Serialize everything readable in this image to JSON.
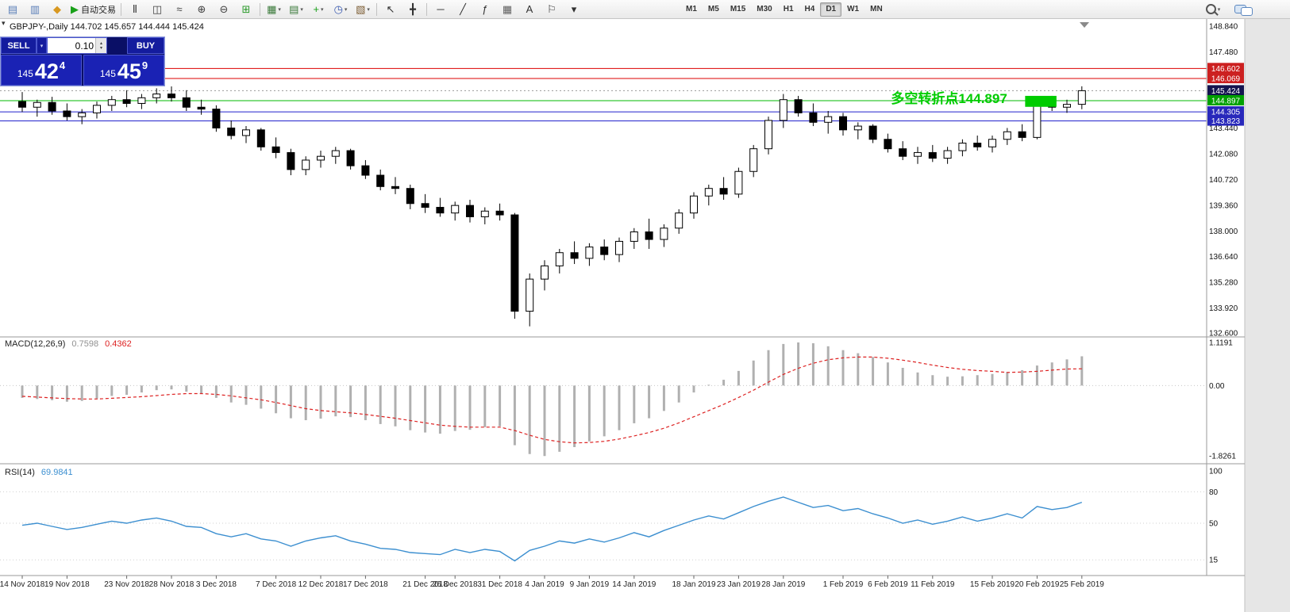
{
  "toolbar": {
    "autotrading_label": "自动交易",
    "timeframes": [
      "M1",
      "M5",
      "M15",
      "M30",
      "H1",
      "H4",
      "D1",
      "W1",
      "MN"
    ],
    "active_timeframe": "D1",
    "icons": [
      {
        "name": "new-order-icon",
        "glyph": "▤",
        "color": "#5b7fb8"
      },
      {
        "name": "charts-grid-icon",
        "glyph": "▥",
        "color": "#5b7fb8"
      },
      {
        "name": "metaquotes-icon",
        "glyph": "◆",
        "color": "#d89820"
      },
      {
        "name": "autotrading-button",
        "glyph": "▶",
        "color": "#18a018",
        "label": "自动交易"
      },
      {
        "sep": true
      },
      {
        "name": "bar-chart-icon",
        "glyph": "Ⅱ",
        "color": "#404040"
      },
      {
        "name": "candlestick-chart-icon",
        "glyph": "◫",
        "color": "#404040"
      },
      {
        "name": "line-chart-icon",
        "glyph": "≈",
        "color": "#404040"
      },
      {
        "name": "zoom-in-icon",
        "glyph": "⊕",
        "color": "#404040"
      },
      {
        "name": "zoom-out-icon",
        "glyph": "⊖",
        "color": "#404040"
      },
      {
        "name": "tile-windows-icon",
        "glyph": "⊞",
        "color": "#2a9a2a"
      },
      {
        "sep": true
      },
      {
        "name": "new-chart-icon",
        "glyph": "▦",
        "color": "#3a7a3a",
        "caret": true
      },
      {
        "name": "profiles-icon",
        "glyph": "▤",
        "color": "#3a7a3a",
        "caret": true
      },
      {
        "name": "indicators-icon",
        "glyph": "+",
        "color": "#18a018",
        "caret": true
      },
      {
        "name": "periods-icon",
        "glyph": "◷",
        "color": "#3a5ab0",
        "caret": true
      },
      {
        "name": "templates-icon",
        "glyph": "▧",
        "color": "#7a5a30",
        "caret": true
      },
      {
        "sep": true
      },
      {
        "name": "cursor-icon",
        "glyph": "↖",
        "color": "#303030"
      },
      {
        "name": "crosshair-icon",
        "glyph": "╋",
        "color": "#303030"
      },
      {
        "sep": true
      },
      {
        "name": "horizontal-line-icon",
        "glyph": "─",
        "color": "#303030"
      },
      {
        "name": "trendline-icon",
        "glyph": "╱",
        "color": "#303030"
      },
      {
        "name": "fibonacci-icon",
        "glyph": "ƒ",
        "color": "#303030"
      },
      {
        "name": "grid-icon",
        "glyph": "▦",
        "color": "#606060"
      },
      {
        "name": "text-icon",
        "glyph": "A",
        "color": "#303030"
      },
      {
        "name": "label-icon",
        "glyph": "⚐",
        "color": "#303030"
      },
      {
        "name": "shapes-icon",
        "glyph": "▾",
        "color": "#303030"
      }
    ]
  },
  "trade_panel": {
    "sell_label": "SELL",
    "buy_label": "BUY",
    "lot_value": "0.10",
    "bid": {
      "prefix": "145",
      "big": "42",
      "sup": "4"
    },
    "ask": {
      "prefix": "145",
      "big": "45",
      "sup": "9"
    }
  },
  "chart": {
    "symbol_line": "GBPJPY-,Daily  144.702 145.657 144.444 145.424"
  },
  "chart_data": {
    "type": "candlestick+indicators",
    "symbol": "GBPJPY-",
    "period": "Daily",
    "ohlc_display": {
      "open": "144.702",
      "high": "145.657",
      "low": "144.444",
      "close": "145.424"
    },
    "price_range": {
      "max": 148.84,
      "min": 132.6
    },
    "price_axis_ticks": [
      "148.840",
      "147.480",
      "143.440",
      "142.080",
      "140.720",
      "139.360",
      "138.000",
      "136.640",
      "135.280",
      "133.920",
      "132.600"
    ],
    "current_price": 145.424,
    "levels": [
      {
        "price": 146.602,
        "color": "#dd0000"
      },
      {
        "price": 146.069,
        "color": "#dd0000"
      },
      {
        "price": 144.897,
        "color": "#00bb00"
      },
      {
        "price": 144.305,
        "color": "#2222cc"
      },
      {
        "price": 143.823,
        "color": "#2222cc"
      }
    ],
    "badges": [
      {
        "text": "146.602",
        "price": 146.602,
        "color": "#cc2020"
      },
      {
        "text": "146.069",
        "price": 146.069,
        "color": "#cc2020"
      },
      {
        "text": "145.424",
        "price": 145.424,
        "color": "#141450"
      },
      {
        "text": "144.897",
        "price": 144.897,
        "color": "#00a000"
      },
      {
        "text": "144.305",
        "price": 144.305,
        "color": "#2828bb"
      },
      {
        "text": "143.823",
        "price": 143.823,
        "color": "#2828bb"
      }
    ],
    "annotation": {
      "text": "多空转折点144.897",
      "color": "#00cc00",
      "anchor_index": 66,
      "price": 144.77,
      "box": {
        "x1_index": 67.2,
        "x2_index": 69.3,
        "price_top": 145.15,
        "price_bottom": 144.57,
        "color": "#00cc00"
      }
    },
    "candles": [
      [
        144.85,
        145.35,
        144.3,
        144.55
      ],
      [
        144.55,
        144.95,
        144.05,
        144.8
      ],
      [
        144.8,
        145.1,
        144.15,
        144.35
      ],
      [
        144.35,
        144.75,
        143.85,
        144.05
      ],
      [
        144.05,
        144.45,
        143.65,
        144.25
      ],
      [
        144.25,
        144.85,
        143.95,
        144.65
      ],
      [
        144.65,
        145.15,
        144.35,
        144.95
      ],
      [
        144.95,
        145.45,
        144.55,
        144.75
      ],
      [
        144.75,
        145.25,
        144.45,
        145.05
      ],
      [
        145.05,
        145.55,
        144.75,
        145.25
      ],
      [
        145.25,
        145.65,
        144.85,
        145.05
      ],
      [
        145.05,
        145.45,
        144.35,
        144.55
      ],
      [
        144.55,
        144.95,
        144.15,
        144.45
      ],
      [
        144.45,
        144.65,
        143.25,
        143.45
      ],
      [
        143.45,
        143.85,
        142.85,
        143.05
      ],
      [
        143.05,
        143.55,
        142.65,
        143.35
      ],
      [
        143.35,
        143.45,
        142.25,
        142.45
      ],
      [
        142.45,
        142.95,
        141.85,
        142.15
      ],
      [
        142.15,
        142.35,
        140.95,
        141.25
      ],
      [
        141.25,
        141.95,
        140.95,
        141.75
      ],
      [
        141.75,
        142.25,
        141.35,
        141.95
      ],
      [
        141.95,
        142.45,
        141.55,
        142.25
      ],
      [
        142.25,
        142.35,
        141.25,
        141.45
      ],
      [
        141.45,
        141.75,
        140.75,
        140.95
      ],
      [
        140.95,
        141.25,
        140.15,
        140.35
      ],
      [
        140.35,
        140.85,
        139.95,
        140.25
      ],
      [
        140.25,
        140.45,
        139.15,
        139.45
      ],
      [
        139.45,
        139.95,
        138.95,
        139.25
      ],
      [
        139.25,
        139.75,
        138.75,
        138.95
      ],
      [
        138.95,
        139.55,
        138.55,
        139.35
      ],
      [
        139.35,
        139.65,
        138.45,
        138.75
      ],
      [
        138.75,
        139.25,
        138.35,
        139.05
      ],
      [
        139.05,
        139.45,
        138.55,
        138.85
      ],
      [
        138.85,
        138.95,
        133.35,
        133.75
      ],
      [
        133.75,
        135.75,
        132.95,
        135.45
      ],
      [
        135.45,
        136.45,
        134.85,
        136.15
      ],
      [
        136.15,
        137.05,
        135.75,
        136.85
      ],
      [
        136.85,
        137.45,
        136.25,
        136.55
      ],
      [
        136.55,
        137.35,
        136.15,
        137.15
      ],
      [
        137.15,
        137.55,
        136.45,
        136.75
      ],
      [
        136.75,
        137.65,
        136.35,
        137.45
      ],
      [
        137.45,
        138.15,
        137.05,
        137.95
      ],
      [
        137.95,
        138.65,
        137.05,
        137.55
      ],
      [
        137.55,
        138.35,
        137.15,
        138.15
      ],
      [
        138.15,
        139.15,
        137.85,
        138.95
      ],
      [
        138.95,
        140.05,
        138.65,
        139.85
      ],
      [
        139.85,
        140.45,
        139.35,
        140.25
      ],
      [
        140.25,
        140.85,
        139.65,
        139.95
      ],
      [
        139.95,
        141.35,
        139.75,
        141.15
      ],
      [
        141.15,
        142.55,
        140.85,
        142.35
      ],
      [
        142.35,
        144.05,
        142.05,
        143.85
      ],
      [
        143.85,
        145.25,
        143.45,
        144.95
      ],
      [
        144.95,
        145.15,
        144.05,
        144.25
      ],
      [
        144.25,
        144.75,
        143.55,
        143.75
      ],
      [
        143.75,
        144.35,
        143.15,
        144.05
      ],
      [
        144.05,
        144.25,
        143.05,
        143.35
      ],
      [
        143.35,
        143.75,
        142.85,
        143.55
      ],
      [
        143.55,
        143.65,
        142.65,
        142.85
      ],
      [
        142.85,
        143.15,
        142.15,
        142.35
      ],
      [
        142.35,
        142.75,
        141.75,
        141.95
      ],
      [
        141.95,
        142.45,
        141.55,
        142.15
      ],
      [
        142.15,
        142.55,
        141.65,
        141.85
      ],
      [
        141.85,
        142.45,
        141.55,
        142.25
      ],
      [
        142.25,
        142.85,
        141.95,
        142.65
      ],
      [
        142.65,
        143.05,
        142.25,
        142.45
      ],
      [
        142.45,
        143.05,
        142.15,
        142.85
      ],
      [
        142.85,
        143.45,
        142.55,
        143.25
      ],
      [
        143.25,
        143.65,
        142.75,
        142.95
      ],
      [
        142.95,
        145.05,
        142.85,
        144.85
      ],
      [
        144.85,
        145.15,
        144.35,
        144.55
      ],
      [
        144.55,
        144.95,
        144.25,
        144.7
      ],
      [
        144.702,
        145.657,
        144.444,
        145.424
      ]
    ],
    "date_labels": [
      {
        "i": 0,
        "label": "14 Nov 2018"
      },
      {
        "i": 3,
        "label": "19 Nov 2018"
      },
      {
        "i": 7,
        "label": "23 Nov 2018"
      },
      {
        "i": 10,
        "label": "28 Nov 2018"
      },
      {
        "i": 13,
        "label": "3 Dec 2018"
      },
      {
        "i": 17,
        "label": "7 Dec 2018"
      },
      {
        "i": 20,
        "label": "12 Dec 2018"
      },
      {
        "i": 23,
        "label": "17 Dec 2018"
      },
      {
        "i": 27,
        "label": "21 Dec 2018"
      },
      {
        "i": 29,
        "label": "26 Dec 2018"
      },
      {
        "i": 32,
        "label": "31 Dec 2018"
      },
      {
        "i": 35,
        "label": "4 Jan 2019"
      },
      {
        "i": 38,
        "label": "9 Jan 2019"
      },
      {
        "i": 41,
        "label": "14 Jan 2019"
      },
      {
        "i": 45,
        "label": "18 Jan 2019"
      },
      {
        "i": 48,
        "label": "23 Jan 2019"
      },
      {
        "i": 51,
        "label": "28 Jan 2019"
      },
      {
        "i": 55,
        "label": "1 Feb 2019"
      },
      {
        "i": 58,
        "label": "6 Feb 2019"
      },
      {
        "i": 61,
        "label": "11 Feb 2019"
      },
      {
        "i": 65,
        "label": "15 Feb 2019"
      },
      {
        "i": 68,
        "label": "20 Feb 2019"
      },
      {
        "i": 71,
        "label": "25 Feb 2019"
      }
    ],
    "macd": {
      "label": "MACD(12,26,9)",
      "value_main": "0.7598",
      "value_signal": "0.4362",
      "range": {
        "max": 1.1191,
        "min": -1.8261
      },
      "axis_ticks": [
        "1.1191",
        "0.00",
        "-1.8261"
      ],
      "colors": {
        "histogram": "#b0b0b0",
        "signal": "#dd2222"
      },
      "histogram": [
        -0.32,
        -0.35,
        -0.38,
        -0.42,
        -0.4,
        -0.34,
        -0.27,
        -0.24,
        -0.18,
        -0.12,
        -0.1,
        -0.16,
        -0.22,
        -0.32,
        -0.44,
        -0.5,
        -0.6,
        -0.72,
        -0.85,
        -0.9,
        -0.86,
        -0.8,
        -0.82,
        -0.9,
        -1.0,
        -1.06,
        -1.16,
        -1.22,
        -1.25,
        -1.18,
        -1.15,
        -1.08,
        -1.06,
        -1.55,
        -1.78,
        -1.83,
        -1.72,
        -1.6,
        -1.45,
        -1.32,
        -1.16,
        -0.98,
        -0.85,
        -0.66,
        -0.44,
        -0.18,
        0.02,
        0.15,
        0.38,
        0.65,
        0.92,
        1.08,
        1.12,
        1.1,
        1.02,
        0.92,
        0.84,
        0.74,
        0.6,
        0.46,
        0.34,
        0.27,
        0.23,
        0.24,
        0.27,
        0.3,
        0.35,
        0.4,
        0.52,
        0.6,
        0.68,
        0.7598
      ],
      "signal": [
        -0.28,
        -0.3,
        -0.32,
        -0.34,
        -0.35,
        -0.35,
        -0.33,
        -0.31,
        -0.29,
        -0.26,
        -0.23,
        -0.21,
        -0.21,
        -0.23,
        -0.27,
        -0.32,
        -0.37,
        -0.44,
        -0.52,
        -0.6,
        -0.65,
        -0.68,
        -0.71,
        -0.75,
        -0.8,
        -0.85,
        -0.91,
        -0.97,
        -1.03,
        -1.06,
        -1.08,
        -1.08,
        -1.08,
        -1.17,
        -1.29,
        -1.4,
        -1.46,
        -1.49,
        -1.48,
        -1.45,
        -1.39,
        -1.31,
        -1.22,
        -1.11,
        -0.97,
        -0.81,
        -0.65,
        -0.49,
        -0.31,
        -0.12,
        0.09,
        0.29,
        0.45,
        0.58,
        0.67,
        0.72,
        0.74,
        0.74,
        0.71,
        0.66,
        0.6,
        0.53,
        0.47,
        0.42,
        0.39,
        0.37,
        0.34,
        0.35,
        0.37,
        0.4,
        0.43,
        0.4362
      ]
    },
    "rsi": {
      "label": "RSI(14)",
      "value": "69.9841",
      "range": {
        "max": 100,
        "min": 0
      },
      "axis_ticks": [
        100,
        80,
        50,
        15
      ],
      "levels": [
        80,
        50,
        15
      ],
      "color": "#3c8fd0",
      "values": [
        48,
        50,
        47,
        44,
        46,
        49,
        52,
        50,
        53,
        55,
        52,
        47,
        46,
        40,
        37,
        40,
        35,
        33,
        28,
        33,
        36,
        38,
        33,
        30,
        26,
        25,
        22,
        21,
        20,
        25,
        22,
        25,
        23,
        14,
        24,
        28,
        33,
        31,
        35,
        32,
        36,
        41,
        37,
        43,
        48,
        53,
        57,
        54,
        60,
        66,
        71,
        75,
        70,
        65,
        67,
        62,
        64,
        59,
        55,
        50,
        53,
        49,
        52,
        56,
        52,
        55,
        59,
        55,
        66,
        63,
        65,
        69.98
      ]
    }
  }
}
